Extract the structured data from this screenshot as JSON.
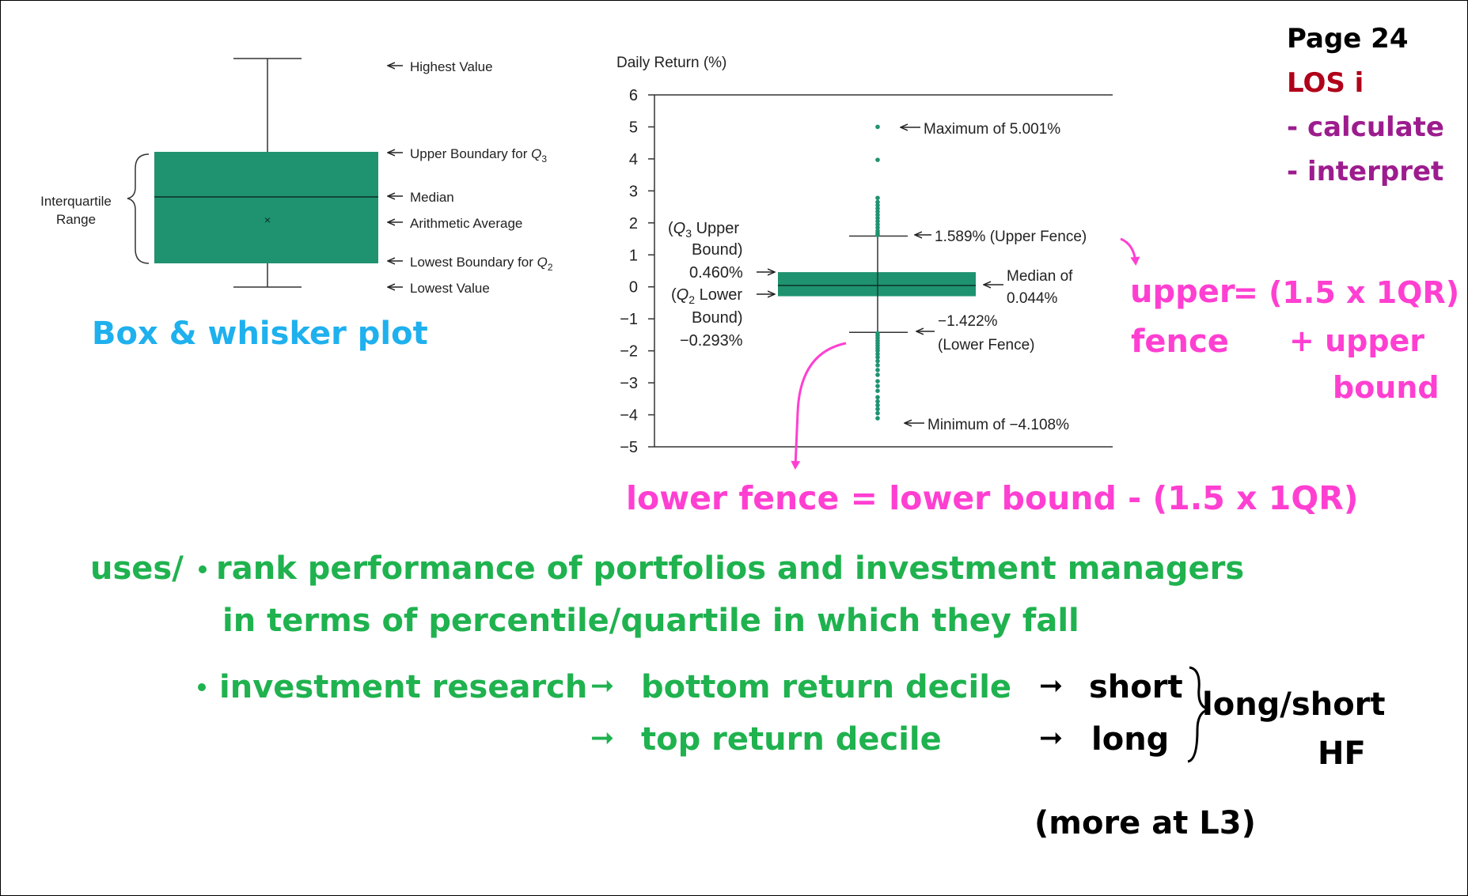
{
  "header": {
    "page": "Page 24",
    "los": "LOS i",
    "items": [
      "- calculate",
      "- interpret"
    ]
  },
  "generic_plot": {
    "caption": "Box & whisker plot",
    "iqr_label_line1": "Interquartile",
    "iqr_label_line2": "Range",
    "annotations": {
      "highest": "Highest Value",
      "upper_boundary_prefix": "Upper Boundary for ",
      "upper_q": "Q",
      "upper_sub": "3",
      "median": "Median",
      "average": "Arithmetic Average",
      "lower_boundary_prefix": "Lowest Boundary for ",
      "lower_q": "Q",
      "lower_sub": "2",
      "lowest": "Lowest Value"
    }
  },
  "chart_data": {
    "type": "box",
    "ylabel": "Daily Return (%)",
    "ylim": [
      -5,
      6
    ],
    "yticks": [
      "6",
      "5",
      "4",
      "3",
      "2",
      "1",
      "0",
      "−1",
      "−2",
      "−3",
      "−4",
      "−5"
    ],
    "ytick_values": [
      6,
      5,
      4,
      3,
      2,
      1,
      0,
      -1,
      -2,
      -3,
      -4,
      -5
    ],
    "q3": 0.46,
    "q2_lower": -0.293,
    "median": 0.044,
    "upper_fence": 1.589,
    "lower_fence": -1.422,
    "max": 5.001,
    "min": -4.108,
    "outliers_upper": [
      5.001,
      3.97,
      2.78,
      2.65,
      2.55,
      2.45,
      2.35,
      2.25,
      2.15,
      2.05,
      1.95,
      1.85,
      1.75,
      1.68,
      1.62
    ],
    "outliers_lower": [
      -1.45,
      -1.52,
      -1.6,
      -1.68,
      -1.76,
      -1.84,
      -1.92,
      -2.0,
      -2.1,
      -2.2,
      -2.32,
      -2.45,
      -2.6,
      -2.75,
      -2.95,
      -3.1,
      -3.25,
      -3.45,
      -3.58,
      -3.7,
      -3.82,
      -3.95,
      -4.108
    ],
    "labels": {
      "max": "Maximum of 5.001%",
      "upper_fence": "1.589% (Upper Fence)",
      "median_line1": "Median of",
      "median_line2": "0.044%",
      "lower_fence_line1": "−1.422%",
      "lower_fence_line2": "(Lower Fence)",
      "min": "Minimum of −4.108%",
      "q3_line1_open": "(",
      "q3_line1_q": "Q",
      "q3_line1_sub": "3",
      "q3_line1_rest": " Upper",
      "q3_line2": "Bound)",
      "q3_value": "0.460%",
      "q2_line1_open": "(",
      "q2_line1_q": "Q",
      "q2_line1_sub": "2",
      "q2_line1_rest": " Lower",
      "q2_line2": "Bound)",
      "q2_value": "−0.293%"
    }
  },
  "notes": {
    "upper_fence_word1": "upper",
    "upper_fence_word2": "fence",
    "upper_fence_formula": "= (1.5 x 1QR)",
    "upper_fence_plus": "+ upper",
    "upper_fence_bound": "bound",
    "lower_fence_formula": "lower fence = lower bound - (1.5 x 1QR)",
    "uses_label": "uses/",
    "use1_line1": "rank performance of portfolios and investment managers",
    "use1_line2": "in terms of percentile/quartile in which they fall",
    "use2_a": "investment research",
    "use2_b": "bottom return decile",
    "use2_c": "top return decile",
    "short": "short",
    "long": "long",
    "longshort": "long/short",
    "hf": "HF",
    "more": "(more at L3)"
  },
  "colors": {
    "box_fill": "#1f9270",
    "pink": "#ff3fd1",
    "blue": "#1fb0ee",
    "green": "#1fb24f",
    "dark_red": "#b0001a",
    "purple": "#9c1c8e"
  }
}
